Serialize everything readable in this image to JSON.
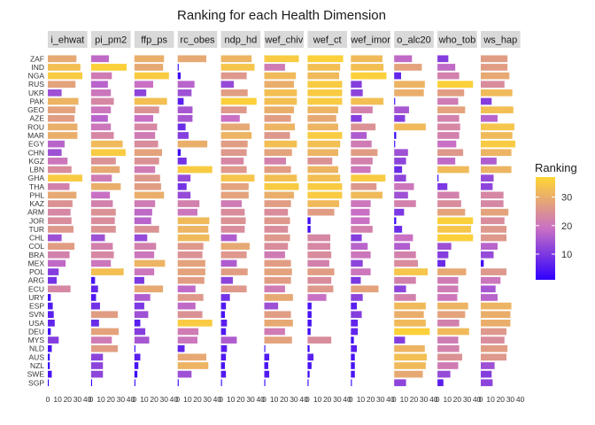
{
  "chart_data": {
    "type": "bar",
    "orientation": "horizontal",
    "title": "Ranking for each Health Dimension",
    "categories": [
      "ZAF",
      "IND",
      "NGA",
      "RUS",
      "UKR",
      "PAK",
      "GEO",
      "AZE",
      "ROU",
      "MAR",
      "EGY",
      "CHN",
      "KGZ",
      "LBN",
      "GHA",
      "THA",
      "PHL",
      "KAZ",
      "ARM",
      "JOR",
      "TUR",
      "CHL",
      "COL",
      "BRA",
      "MEX",
      "POL",
      "ARG",
      "ECU",
      "URY",
      "ESP",
      "SVN",
      "USA",
      "DEU",
      "MYS",
      "NLD",
      "AUS",
      "NZL",
      "SWE",
      "SGP"
    ],
    "facets": [
      {
        "name": "i_ehwat",
        "values": [
          29,
          33,
          35,
          28,
          14,
          31,
          28,
          27,
          30,
          30,
          17,
          14,
          20,
          24,
          35,
          22,
          29,
          25,
          23,
          24,
          26,
          14,
          27,
          22,
          18,
          11,
          9,
          23,
          3,
          5,
          6,
          7,
          3,
          11,
          4,
          2,
          2,
          4,
          1
        ]
      },
      {
        "name": "pi_pm2",
        "values": [
          18,
          36,
          21,
          17,
          20,
          23,
          20,
          17,
          20,
          23,
          32,
          35,
          25,
          29,
          21,
          30,
          19,
          22,
          25,
          24,
          25,
          14,
          22,
          23,
          20,
          33,
          4,
          7,
          5,
          9,
          27,
          8,
          28,
          21,
          27,
          12,
          12,
          12,
          1
        ]
      },
      {
        "name": "ffp_ps",
        "values": [
          30,
          29,
          35,
          19,
          12,
          33,
          25,
          19,
          23,
          21,
          24,
          28,
          25,
          21,
          26,
          27,
          30,
          21,
          18,
          17,
          25,
          13,
          22,
          20,
          31,
          20,
          10,
          29,
          16,
          10,
          14,
          6,
          11,
          15,
          1,
          6,
          4,
          3,
          1
        ]
      },
      {
        "name": "rc_obes",
        "values": [
          29,
          1,
          3,
          17,
          14,
          6,
          15,
          15,
          8,
          11,
          30,
          3,
          9,
          35,
          13,
          9,
          13,
          22,
          20,
          32,
          31,
          32,
          26,
          25,
          28,
          28,
          27,
          18,
          26,
          18,
          25,
          35,
          21,
          20,
          7,
          29,
          31,
          14,
          1
        ]
      },
      {
        "name": "ndp_hd",
        "values": [
          31,
          34,
          26,
          13,
          27,
          36,
          26,
          19,
          29,
          31,
          27,
          26,
          23,
          26,
          34,
          28,
          28,
          21,
          24,
          25,
          24,
          16,
          29,
          26,
          16,
          27,
          12,
          26,
          9,
          5,
          4,
          6,
          5,
          16,
          6,
          5,
          4,
          5,
          1
        ]
      },
      {
        "name": "wef_chiv",
        "values": [
          35,
          21,
          32,
          30,
          33,
          33,
          30,
          27,
          31,
          26,
          33,
          28,
          22,
          27,
          33,
          35,
          30,
          27,
          24,
          26,
          24,
          26,
          24,
          21,
          27,
          28,
          27,
          21,
          29,
          14,
          27,
          29,
          21,
          28,
          1,
          5,
          4,
          5,
          1
        ]
      },
      {
        "name": "wef_ct",
        "values": [
          36,
          33,
          32,
          35,
          35,
          35,
          31,
          29,
          31,
          35,
          33,
          31,
          25,
          31,
          33,
          35,
          35,
          32,
          27,
          3,
          3,
          23,
          23,
          24,
          22,
          27,
          24,
          26,
          19,
          4,
          4,
          4,
          3,
          24,
          2,
          6,
          4,
          2,
          1
        ]
      },
      {
        "name": "wef_imor",
        "values": [
          32,
          33,
          36,
          11,
          12,
          33,
          22,
          11,
          25,
          16,
          21,
          27,
          22,
          20,
          35,
          26,
          32,
          20,
          19,
          19,
          22,
          11,
          17,
          20,
          12,
          20,
          10,
          28,
          12,
          6,
          11,
          7,
          7,
          3,
          6,
          4,
          4,
          4,
          1
        ]
      },
      {
        "name": "o_alc20",
        "values": [
          18,
          28,
          7,
          31,
          30,
          1,
          15,
          11,
          32,
          2,
          1,
          14,
          12,
          8,
          12,
          20,
          14,
          22,
          10,
          2,
          8,
          19,
          16,
          22,
          24,
          34,
          22,
          12,
          22,
          32,
          30,
          32,
          36,
          11,
          31,
          33,
          32,
          29,
          12
        ]
      },
      {
        "name": "who_tob",
        "values": [
          11,
          18,
          22,
          36,
          27,
          21,
          28,
          22,
          23,
          22,
          19,
          26,
          18,
          32,
          1,
          10,
          22,
          24,
          28,
          36,
          34,
          36,
          14,
          11,
          8,
          29,
          21,
          21,
          20,
          31,
          28,
          22,
          32,
          21,
          22,
          25,
          21,
          13,
          6
        ]
      },
      {
        "name": "ws_hap",
        "values": [
          27,
          27,
          29,
          24,
          32,
          11,
          33,
          17,
          34,
          32,
          35,
          31,
          16,
          31,
          13,
          12,
          23,
          23,
          28,
          24,
          26,
          26,
          17,
          13,
          3,
          26,
          20,
          15,
          17,
          31,
          30,
          30,
          26,
          24,
          27,
          26,
          14,
          11,
          12
        ]
      }
    ],
    "xlim": [
      0,
      40
    ],
    "xticks": [
      "0",
      "10",
      "20",
      "30",
      "40"
    ],
    "legend": {
      "title": "Ranking",
      "position": "right",
      "ticks": [
        "10",
        "20",
        "30"
      ],
      "min": 1,
      "max": 37,
      "low_color": "#2f00ff",
      "mid_color": "#c970c4",
      "high_color": "#ffd633"
    },
    "strip_color": "#d9d9d9"
  }
}
